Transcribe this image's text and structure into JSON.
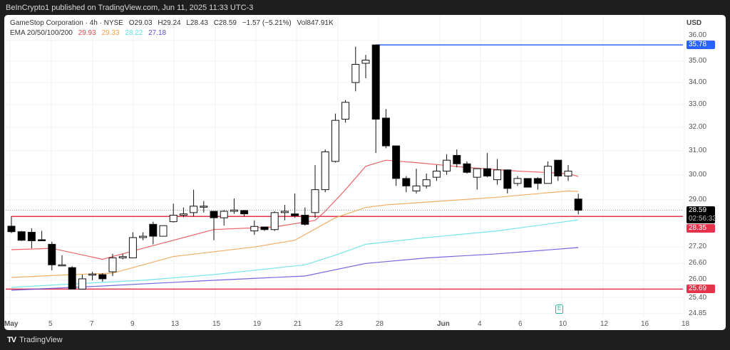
{
  "header": {
    "published": "BeInCrypto1 published on TradingView.com, Jun 11, 2025 11:33 UTC-3"
  },
  "legend": {
    "symbol": "GameStop Corporation · 4h · NYSE",
    "open": "O29.03",
    "high": "H29.24",
    "low": "L28.43",
    "close": "C28.59",
    "change": "−1.57 (−5.21%)",
    "volume": "Vol847.91K",
    "ema_label": "EMA 20/50/100/200",
    "ema_values": [
      "29.93",
      "29.33",
      "28.22",
      "27.18"
    ],
    "ema_colors": [
      "#e5484d",
      "#f0a04b",
      "#5fe0e6",
      "#5b4fd6"
    ]
  },
  "price_axis": {
    "currency": "USD",
    "scale": "log",
    "ticks": [
      "36.00",
      "35.00",
      "34.00",
      "33.00",
      "32.00",
      "31.00",
      "30.00",
      "29.00",
      "27.20",
      "26.60",
      "26.00",
      "25.40",
      "24.85"
    ],
    "last_price": "28.59",
    "countdown": "02:56:33",
    "levels": [
      {
        "label": "35.78",
        "value": 35.78,
        "color": "#2962ff"
      },
      {
        "label": "28.35",
        "value": 28.35,
        "color": "#e5334b"
      },
      {
        "label": "25.69",
        "value": 25.69,
        "color": "#e5334b"
      }
    ]
  },
  "time_axis": {
    "ticks": [
      "May",
      "5",
      "7",
      "9",
      "13",
      "15",
      "19",
      "21",
      "23",
      "28",
      "Jun",
      "4",
      "6",
      "10",
      "12",
      "16",
      "18"
    ]
  },
  "earnings_marker": "E",
  "footer": {
    "brand": "TradingView"
  },
  "chart_data": {
    "type": "candlestick",
    "ohlc": [
      [
        27.98,
        28.35,
        27.72,
        27.77
      ],
      [
        27.77,
        27.8,
        27.42,
        27.45
      ],
      [
        27.75,
        27.9,
        27.15,
        27.43
      ],
      [
        27.47,
        27.8,
        27.42,
        27.44
      ],
      [
        27.3,
        27.4,
        26.35,
        26.55
      ],
      [
        26.55,
        26.9,
        26.5,
        26.55
      ],
      [
        26.45,
        26.5,
        25.69,
        25.69
      ],
      [
        25.69,
        26.2,
        25.69,
        26.05
      ],
      [
        26.18,
        26.3,
        26.0,
        26.22
      ],
      [
        26.2,
        26.25,
        25.95,
        26.05
      ],
      [
        26.3,
        26.95,
        26.15,
        26.8
      ],
      [
        26.8,
        26.95,
        26.75,
        26.85
      ],
      [
        26.8,
        27.75,
        26.8,
        27.55
      ],
      [
        27.55,
        27.75,
        27.45,
        27.6
      ],
      [
        28.05,
        28.15,
        27.3,
        27.6
      ],
      [
        27.6,
        28.0,
        27.6,
        28.0
      ],
      [
        28.15,
        28.85,
        28.12,
        28.4
      ],
      [
        28.4,
        28.7,
        28.32,
        28.45
      ],
      [
        28.5,
        29.4,
        28.35,
        28.75
      ],
      [
        28.75,
        28.95,
        28.5,
        28.75
      ],
      [
        28.55,
        28.55,
        27.45,
        28.3
      ],
      [
        28.3,
        28.6,
        28.0,
        28.55
      ],
      [
        28.55,
        29.05,
        28.45,
        28.6
      ],
      [
        28.58,
        28.6,
        28.35,
        28.45
      ],
      [
        27.8,
        28.2,
        27.65,
        27.97
      ],
      [
        27.95,
        27.95,
        27.8,
        27.85
      ],
      [
        27.85,
        28.55,
        27.8,
        28.5
      ],
      [
        28.5,
        28.8,
        28.2,
        28.55
      ],
      [
        28.45,
        29.25,
        28.3,
        28.38
      ],
      [
        28.4,
        28.7,
        28.0,
        28.05
      ],
      [
        28.5,
        30.4,
        28.3,
        29.4
      ],
      [
        29.4,
        31.05,
        29.3,
        30.95
      ],
      [
        30.55,
        32.6,
        30.5,
        32.3
      ],
      [
        32.35,
        33.2,
        32.2,
        33.1
      ],
      [
        34.0,
        35.7,
        33.6,
        34.85
      ],
      [
        34.9,
        35.3,
        34.2,
        35.05
      ],
      [
        35.78,
        35.78,
        30.9,
        32.35
      ],
      [
        32.4,
        32.8,
        31.1,
        31.2
      ],
      [
        31.2,
        31.2,
        29.55,
        29.85
      ],
      [
        29.85,
        29.95,
        29.3,
        29.55
      ],
      [
        29.35,
        30.25,
        29.25,
        29.55
      ],
      [
        29.55,
        30.05,
        29.45,
        29.8
      ],
      [
        29.9,
        30.4,
        29.75,
        30.15
      ],
      [
        30.15,
        30.85,
        30.0,
        30.6
      ],
      [
        30.8,
        31.05,
        30.3,
        30.45
      ],
      [
        30.45,
        30.55,
        30.05,
        30.1
      ],
      [
        29.9,
        30.25,
        29.4,
        30.25
      ],
      [
        30.25,
        30.9,
        29.9,
        29.95
      ],
      [
        29.8,
        30.65,
        29.6,
        30.2
      ],
      [
        30.2,
        30.2,
        29.25,
        29.45
      ],
      [
        29.65,
        29.95,
        29.55,
        29.85
      ],
      [
        29.85,
        29.85,
        29.5,
        29.5
      ],
      [
        29.85,
        29.9,
        29.4,
        29.65
      ],
      [
        29.65,
        30.55,
        29.65,
        30.35
      ],
      [
        30.6,
        30.6,
        29.75,
        29.95
      ],
      [
        29.95,
        30.4,
        29.75,
        30.15
      ],
      [
        29.03,
        29.24,
        28.43,
        28.59
      ]
    ],
    "ema": [
      {
        "name": "EMA 20",
        "points": [
          [
            0,
            27.1
          ],
          [
            4,
            27.15
          ],
          [
            9,
            26.75
          ],
          [
            13,
            27.15
          ],
          [
            20,
            27.85
          ],
          [
            26,
            27.95
          ],
          [
            30,
            28.2
          ],
          [
            31,
            28.55
          ],
          [
            33,
            29.4
          ],
          [
            35,
            30.35
          ],
          [
            37,
            30.6
          ],
          [
            40,
            30.5
          ],
          [
            45,
            30.3
          ],
          [
            50,
            30.15
          ],
          [
            55,
            30.05
          ],
          [
            56,
            29.93
          ]
        ]
      },
      {
        "name": "EMA 50",
        "points": [
          [
            0,
            26.1
          ],
          [
            6,
            26.2
          ],
          [
            10,
            26.25
          ],
          [
            16,
            26.85
          ],
          [
            24,
            27.2
          ],
          [
            28,
            27.45
          ],
          [
            32,
            28.3
          ],
          [
            35,
            28.7
          ],
          [
            37,
            28.8
          ],
          [
            48,
            29.1
          ],
          [
            55,
            29.35
          ],
          [
            56,
            29.33
          ]
        ]
      },
      {
        "name": "EMA 100",
        "points": [
          [
            0,
            25.75
          ],
          [
            6,
            25.87
          ],
          [
            13,
            26.0
          ],
          [
            20,
            26.2
          ],
          [
            29,
            26.55
          ],
          [
            32,
            26.9
          ],
          [
            35,
            27.3
          ],
          [
            41,
            27.55
          ],
          [
            48,
            27.8
          ],
          [
            56,
            28.22
          ]
        ]
      },
      {
        "name": "EMA 200",
        "points": [
          [
            0,
            25.65
          ],
          [
            9,
            25.8
          ],
          [
            20,
            26.0
          ],
          [
            29,
            26.15
          ],
          [
            35,
            26.6
          ],
          [
            41,
            26.8
          ],
          [
            48,
            26.95
          ],
          [
            56,
            27.18
          ]
        ]
      }
    ]
  }
}
